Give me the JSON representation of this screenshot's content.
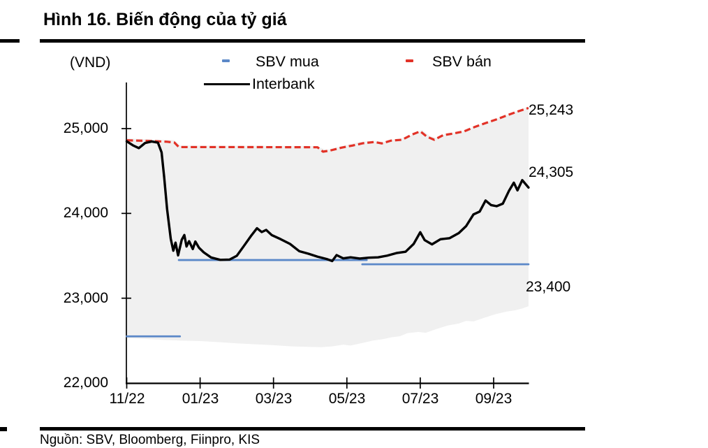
{
  "figure": {
    "title": "Hình 16. Biến động của tỷ giá",
    "source": "Nguồn: SBV, Bloomberg, Fiinpro, KIS"
  },
  "chart_data": {
    "type": "line",
    "title": "Hình 16. Biến động của tỷ giá",
    "unit_label": "(VND)",
    "ylabel": "VND",
    "xlabel": "",
    "ylim": [
      22000,
      25550
    ],
    "grid": false,
    "legend_position": "top",
    "y_ticks": [
      22000,
      23000,
      24000,
      25000
    ],
    "y_tick_labels": [
      "22,000",
      "23,000",
      "24,000",
      "25,000"
    ],
    "x_tick_labels": [
      "11/22",
      "01/23",
      "03/23",
      "05/23",
      "07/23",
      "09/23"
    ],
    "x_tick_months": [
      0,
      2,
      4,
      6,
      8,
      10
    ],
    "x_range_months": [
      0,
      10.95
    ],
    "legend": [
      {
        "label": "SBV mua",
        "color": "#5B88C8",
        "style": "dash"
      },
      {
        "label": "SBV bán",
        "color": "#E23227",
        "style": "dash"
      },
      {
        "label": "Interbank",
        "color": "#000000",
        "style": "solid"
      }
    ],
    "annotations": [
      {
        "text": "25,243",
        "value": 25243,
        "series": "SBV bán"
      },
      {
        "text": "24,305",
        "value": 24305,
        "series": "Interbank"
      },
      {
        "text": "23,400",
        "value": 23400,
        "series": "SBV mua"
      }
    ],
    "band": {
      "name": "trading-band",
      "color": "#F0F0F0",
      "upper": [
        [
          0,
          24885
        ],
        [
          1.3,
          24862
        ],
        [
          1.45,
          24800
        ],
        [
          3,
          24798
        ],
        [
          5.15,
          24795
        ],
        [
          5.45,
          24748
        ],
        [
          5.85,
          24792
        ],
        [
          6.3,
          24838
        ],
        [
          6.7,
          24858
        ],
        [
          7.0,
          24842
        ],
        [
          7.3,
          24875
        ],
        [
          7.6,
          24888
        ],
        [
          7.85,
          24945
        ],
        [
          8.05,
          24985
        ],
        [
          8.25,
          24915
        ],
        [
          8.45,
          24888
        ],
        [
          8.7,
          24942
        ],
        [
          9.0,
          24958
        ],
        [
          9.3,
          24988
        ],
        [
          9.6,
          25045
        ],
        [
          9.9,
          25090
        ],
        [
          10.2,
          25135
        ],
        [
          10.5,
          25185
        ],
        [
          10.75,
          25225
        ],
        [
          10.95,
          25260
        ]
      ],
      "lower": [
        [
          0,
          22530
        ],
        [
          0.5,
          22520
        ],
        [
          1,
          22508
        ],
        [
          1.5,
          22500
        ],
        [
          2,
          22494
        ],
        [
          2.5,
          22482
        ],
        [
          3,
          22468
        ],
        [
          3.5,
          22456
        ],
        [
          4,
          22446
        ],
        [
          4.5,
          22432
        ],
        [
          5,
          22425
        ],
        [
          5.3,
          22422
        ],
        [
          5.6,
          22432
        ],
        [
          5.9,
          22452
        ],
        [
          6.1,
          22442
        ],
        [
          6.4,
          22470
        ],
        [
          6.7,
          22500
        ],
        [
          7,
          22518
        ],
        [
          7.2,
          22538
        ],
        [
          7.45,
          22552
        ],
        [
          7.65,
          22588
        ],
        [
          7.95,
          22602
        ],
        [
          8.15,
          22592
        ],
        [
          8.45,
          22638
        ],
        [
          8.75,
          22678
        ],
        [
          9.05,
          22702
        ],
        [
          9.25,
          22732
        ],
        [
          9.45,
          22726
        ],
        [
          9.75,
          22770
        ],
        [
          10.05,
          22812
        ],
        [
          10.35,
          22842
        ],
        [
          10.6,
          22858
        ],
        [
          10.8,
          22882
        ],
        [
          10.95,
          22906
        ]
      ]
    },
    "series": [
      {
        "name": "SBV mua",
        "color": "#5B88C8",
        "dash": false,
        "width": 2.8,
        "segments": [
          [
            [
              0,
              22550
            ],
            [
              1.45,
              22550
            ]
          ],
          [
            [
              1.42,
              23450
            ],
            [
              6.54,
              23450
            ]
          ],
          [
            [
              6.42,
              23400
            ],
            [
              10.95,
              23400
            ]
          ]
        ]
      },
      {
        "name": "SBV bán",
        "color": "#E23227",
        "dash": true,
        "width": 3.2,
        "points": [
          [
            0,
            24862
          ],
          [
            0.6,
            24855
          ],
          [
            1.1,
            24845
          ],
          [
            1.3,
            24835
          ],
          [
            1.42,
            24782
          ],
          [
            3.0,
            24782
          ],
          [
            5.2,
            24780
          ],
          [
            5.35,
            24728
          ],
          [
            5.55,
            24742
          ],
          [
            5.85,
            24775
          ],
          [
            6.15,
            24800
          ],
          [
            6.45,
            24828
          ],
          [
            6.75,
            24842
          ],
          [
            6.95,
            24825
          ],
          [
            7.2,
            24858
          ],
          [
            7.5,
            24868
          ],
          [
            7.78,
            24930
          ],
          [
            8.0,
            24968
          ],
          [
            8.18,
            24905
          ],
          [
            8.38,
            24868
          ],
          [
            8.62,
            24922
          ],
          [
            8.9,
            24942
          ],
          [
            9.2,
            24968
          ],
          [
            9.5,
            25022
          ],
          [
            9.8,
            25068
          ],
          [
            10.1,
            25112
          ],
          [
            10.4,
            25162
          ],
          [
            10.7,
            25208
          ],
          [
            10.95,
            25243
          ]
        ]
      },
      {
        "name": "Interbank",
        "color": "#000000",
        "dash": false,
        "width": 3.4,
        "points": [
          [
            0,
            24850
          ],
          [
            0.18,
            24800
          ],
          [
            0.33,
            24770
          ],
          [
            0.5,
            24830
          ],
          [
            0.68,
            24848
          ],
          [
            0.85,
            24835
          ],
          [
            0.95,
            24720
          ],
          [
            1.02,
            24430
          ],
          [
            1.1,
            24050
          ],
          [
            1.2,
            23700
          ],
          [
            1.27,
            23560
          ],
          [
            1.33,
            23655
          ],
          [
            1.4,
            23505
          ],
          [
            1.5,
            23690
          ],
          [
            1.57,
            23745
          ],
          [
            1.63,
            23610
          ],
          [
            1.7,
            23672
          ],
          [
            1.8,
            23580
          ],
          [
            1.87,
            23668
          ],
          [
            1.97,
            23595
          ],
          [
            2.1,
            23540
          ],
          [
            2.3,
            23480
          ],
          [
            2.55,
            23452
          ],
          [
            2.8,
            23455
          ],
          [
            3.0,
            23500
          ],
          [
            3.2,
            23620
          ],
          [
            3.38,
            23730
          ],
          [
            3.55,
            23825
          ],
          [
            3.68,
            23780
          ],
          [
            3.8,
            23805
          ],
          [
            3.95,
            23745
          ],
          [
            4.2,
            23695
          ],
          [
            4.45,
            23640
          ],
          [
            4.7,
            23555
          ],
          [
            4.95,
            23525
          ],
          [
            5.2,
            23490
          ],
          [
            5.45,
            23462
          ],
          [
            5.6,
            23438
          ],
          [
            5.72,
            23508
          ],
          [
            5.9,
            23470
          ],
          [
            6.1,
            23482
          ],
          [
            6.35,
            23468
          ],
          [
            6.6,
            23478
          ],
          [
            6.85,
            23482
          ],
          [
            7.1,
            23502
          ],
          [
            7.35,
            23532
          ],
          [
            7.6,
            23548
          ],
          [
            7.82,
            23640
          ],
          [
            8.0,
            23778
          ],
          [
            8.12,
            23685
          ],
          [
            8.32,
            23635
          ],
          [
            8.55,
            23695
          ],
          [
            8.8,
            23708
          ],
          [
            9.05,
            23768
          ],
          [
            9.25,
            23850
          ],
          [
            9.45,
            23988
          ],
          [
            9.62,
            24022
          ],
          [
            9.78,
            24152
          ],
          [
            9.93,
            24098
          ],
          [
            10.08,
            24085
          ],
          [
            10.25,
            24115
          ],
          [
            10.42,
            24268
          ],
          [
            10.55,
            24362
          ],
          [
            10.65,
            24272
          ],
          [
            10.78,
            24392
          ],
          [
            10.95,
            24305
          ]
        ]
      }
    ]
  }
}
